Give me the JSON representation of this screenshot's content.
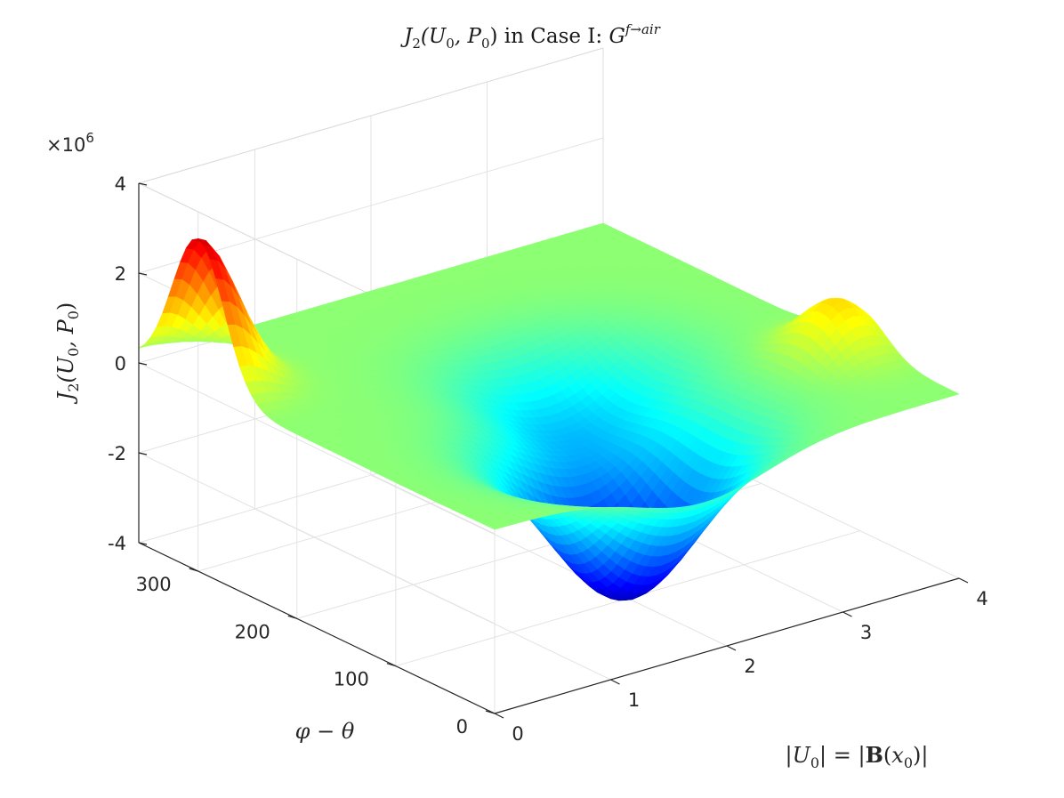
{
  "chart_data": {
    "type": "surface",
    "title": {
      "prefix": "J",
      "sub": "2",
      "args": "(U",
      "sub0a": "0",
      "comma": ", P",
      "sub0b": "0",
      "close": ")",
      "middle": " in Case I: ",
      "G": "G",
      "sup": "f→air"
    },
    "zlabel": "J2(U0, P0)",
    "xlabel": "|U0| = |B(x0)|",
    "ylabel": "φ − θ",
    "z_exponent": "×10",
    "z_exponent_power": "6",
    "x_ticks": [
      "0",
      "1",
      "2",
      "3",
      "4"
    ],
    "y_ticks": [
      "0",
      "100",
      "200",
      "300"
    ],
    "z_ticks": [
      "4",
      "2",
      "0",
      "-2",
      "-4"
    ],
    "xlim": [
      0,
      4
    ],
    "ylim": [
      0,
      360
    ],
    "zlim": [
      -4,
      4
    ],
    "grid": true,
    "colormap": "jet",
    "features": [
      {
        "kind": "peak",
        "x": 0.0,
        "y": 300,
        "z": 3.3
      },
      {
        "kind": "peak",
        "x": 3.8,
        "y": 100,
        "z": 1.2
      },
      {
        "kind": "trough",
        "x": 1.8,
        "y": 80,
        "z": -3.7
      },
      {
        "kind": "trough",
        "x": 2.3,
        "y": 190,
        "z": -1.5
      }
    ]
  }
}
